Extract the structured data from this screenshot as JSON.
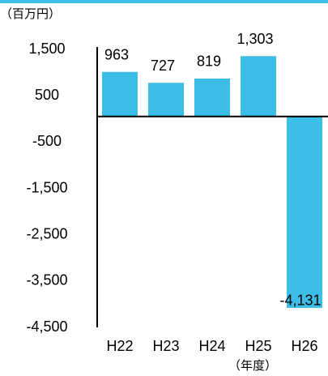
{
  "chart_data": {
    "type": "bar",
    "unit_label": "（百万円）",
    "x_label": "（年度）",
    "categories": [
      "H22",
      "H23",
      "H24",
      "H25",
      "H26"
    ],
    "values": [
      963,
      727,
      819,
      1303,
      -4131
    ],
    "value_labels": [
      "963",
      "727",
      "819",
      "1,303",
      "-4,131"
    ],
    "color": "#3bbde6",
    "ylim": [
      -4500,
      1500
    ],
    "yticks": [
      {
        "value": 1500,
        "label": "1,500"
      },
      500,
      -500,
      {
        "value": -1500,
        "label": "-1,500"
      },
      {
        "value": -2500,
        "label": "-2,500"
      },
      {
        "value": -3500,
        "label": "-3,500"
      },
      {
        "value": -4500,
        "label": "-4,500"
      }
    ],
    "grid": false
  }
}
